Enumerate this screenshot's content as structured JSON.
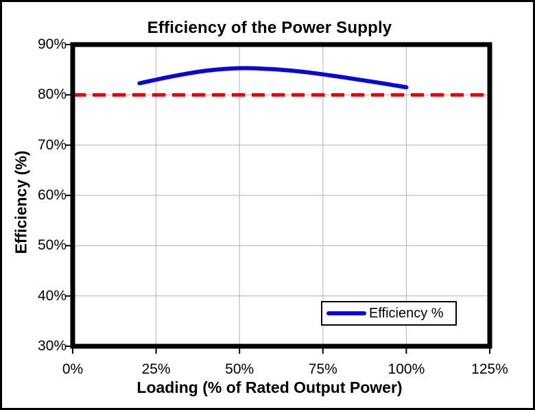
{
  "chart_data": {
    "type": "line",
    "title": "Efficiency of the Power Supply",
    "xlabel": "Loading (% of Rated Output Power)",
    "ylabel": "Efficiency (%)",
    "xlim": [
      0,
      125
    ],
    "ylim": [
      30,
      90
    ],
    "x_ticks": [
      0,
      25,
      50,
      75,
      100,
      125
    ],
    "x_tick_labels": [
      "0%",
      "25%",
      "50%",
      "75%",
      "100%",
      "125%"
    ],
    "y_ticks": [
      30,
      40,
      50,
      60,
      70,
      80,
      90
    ],
    "y_tick_labels": [
      "30%",
      "40%",
      "50%",
      "60%",
      "70%",
      "80%",
      "90%"
    ],
    "grid": true,
    "gridline_color": "#b0b0b0",
    "frame_color": "#000000",
    "legend": {
      "position": "bottom-right-inside",
      "entries": [
        "Efficiency %"
      ]
    },
    "series": [
      {
        "name": "Efficiency %",
        "style": "smooth-line",
        "color": "#0808dd",
        "stroke_width": 6,
        "x": [
          20,
          30,
          40,
          50,
          60,
          70,
          80,
          90,
          100
        ],
        "values": [
          82.3,
          83.7,
          84.8,
          85.3,
          85.1,
          84.5,
          83.6,
          82.6,
          81.5
        ]
      },
      {
        "name": "80% reference line",
        "style": "dashed-line",
        "color": "#e60000",
        "stroke_width": 5,
        "x": [
          0,
          125
        ],
        "values": [
          80,
          80
        ]
      }
    ]
  }
}
